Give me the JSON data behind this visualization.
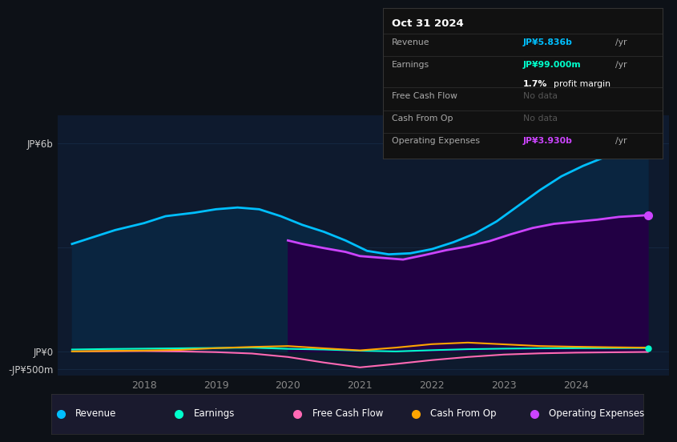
{
  "bg_color": "#0d1117",
  "plot_bg_color": "#0e1a2e",
  "grid_color": "#1a3350",
  "title_date": "Oct 31 2024",
  "tooltip_revenue_val": "JP¥5.836b",
  "tooltip_earnings_val": "JP¥99.000m",
  "tooltip_profit_margin": "1.7%",
  "tooltip_profit_margin2": "profit margin",
  "tooltip_fcf": "No data",
  "tooltip_cfo": "No data",
  "tooltip_opex_val": "JP¥3.930b",
  "ylabel_top": "JP¥6b",
  "ylabel_zero": "JP¥0",
  "ylabel_neg": "-JP¥500m",
  "x_ticks": [
    2018,
    2019,
    2020,
    2021,
    2022,
    2023,
    2024
  ],
  "ylim_min": -700,
  "ylim_max": 6800,
  "revenue_x": [
    2017.0,
    2017.3,
    2017.6,
    2018.0,
    2018.3,
    2018.7,
    2019.0,
    2019.3,
    2019.6,
    2019.9,
    2020.2,
    2020.5,
    2020.8,
    2021.1,
    2021.4,
    2021.7,
    2022.0,
    2022.3,
    2022.6,
    2022.9,
    2023.2,
    2023.5,
    2023.8,
    2024.1,
    2024.4,
    2024.7,
    2025.0
  ],
  "revenue_y": [
    3100,
    3300,
    3500,
    3700,
    3900,
    4000,
    4100,
    4150,
    4100,
    3900,
    3650,
    3450,
    3200,
    2900,
    2800,
    2830,
    2950,
    3150,
    3400,
    3750,
    4200,
    4650,
    5050,
    5350,
    5600,
    5780,
    5836
  ],
  "revenue_color": "#00bfff",
  "revenue_fill": "#0a2540",
  "opex_x": [
    2020.0,
    2020.2,
    2020.5,
    2020.8,
    2021.0,
    2021.3,
    2021.6,
    2021.9,
    2022.2,
    2022.5,
    2022.8,
    2023.1,
    2023.4,
    2023.7,
    2024.0,
    2024.3,
    2024.6,
    2025.0
  ],
  "opex_y": [
    3200,
    3100,
    2980,
    2870,
    2750,
    2700,
    2650,
    2780,
    2920,
    3030,
    3180,
    3380,
    3560,
    3680,
    3740,
    3800,
    3880,
    3930
  ],
  "opex_color": "#cc44ff",
  "opex_fill": "#220044",
  "earnings_x": [
    2017.0,
    2017.5,
    2018.0,
    2018.5,
    2019.0,
    2019.5,
    2020.0,
    2020.5,
    2021.0,
    2021.5,
    2022.0,
    2022.5,
    2023.0,
    2023.5,
    2024.0,
    2024.5,
    2025.0
  ],
  "earnings_y": [
    55,
    70,
    80,
    90,
    100,
    110,
    75,
    55,
    20,
    0,
    35,
    65,
    80,
    90,
    94,
    97,
    99
  ],
  "earnings_color": "#00ffcc",
  "fcf_x": [
    2017.0,
    2017.5,
    2018.0,
    2018.5,
    2019.0,
    2019.5,
    2020.0,
    2020.5,
    2021.0,
    2021.5,
    2022.0,
    2022.5,
    2023.0,
    2023.5,
    2024.0,
    2024.5,
    2025.0
  ],
  "fcf_y": [
    0,
    5,
    10,
    0,
    -20,
    -60,
    -160,
    -320,
    -460,
    -360,
    -250,
    -160,
    -90,
    -55,
    -35,
    -25,
    -15
  ],
  "fcf_color": "#ff69b4",
  "cfo_x": [
    2017.0,
    2017.5,
    2018.0,
    2018.5,
    2019.0,
    2019.5,
    2020.0,
    2020.5,
    2021.0,
    2021.5,
    2022.0,
    2022.5,
    2023.0,
    2023.5,
    2024.0,
    2024.5,
    2025.0
  ],
  "cfo_y": [
    0,
    15,
    25,
    45,
    95,
    130,
    155,
    90,
    30,
    110,
    210,
    255,
    205,
    155,
    135,
    120,
    108
  ],
  "cfo_color": "#ffa500",
  "legend_items": [
    {
      "label": "Revenue",
      "color": "#00bfff"
    },
    {
      "label": "Earnings",
      "color": "#00ffcc"
    },
    {
      "label": "Free Cash Flow",
      "color": "#ff69b4"
    },
    {
      "label": "Cash From Op",
      "color": "#ffa500"
    },
    {
      "label": "Operating Expenses",
      "color": "#cc44ff"
    }
  ]
}
